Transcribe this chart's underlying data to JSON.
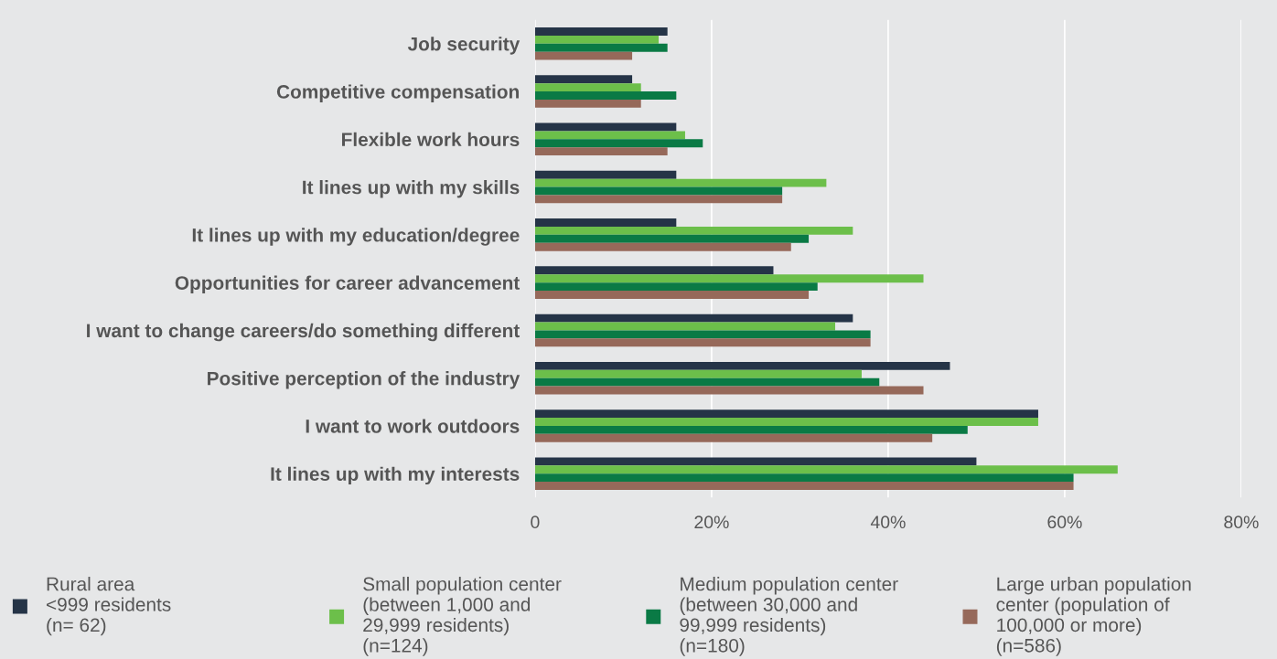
{
  "chart_data": {
    "type": "bar",
    "orientation": "horizontal",
    "categories": [
      "Job security",
      "Competitive compensation",
      "Flexible work hours",
      "It lines up with my skills",
      "It lines up with my education/degree",
      "Opportunities for career advancement",
      "I want to change careers/do something different",
      "Positive perception of the industry",
      "I want to work outdoors",
      "It lines up with my interests"
    ],
    "series": [
      {
        "name": "Rural area\n<999 residents\n(n= 62)",
        "color": "#253447",
        "values": [
          15,
          11,
          16,
          16,
          16,
          27,
          36,
          47,
          57,
          50
        ]
      },
      {
        "name": "Small population center\n(between 1,000 and\n29,999 residents)\n(n=124)",
        "color": "#6cbf4a",
        "values": [
          14,
          12,
          17,
          33,
          36,
          44,
          34,
          37,
          57,
          66
        ]
      },
      {
        "name": "Medium population center\n(between 30,000 and\n99,999 residents)\n(n=180)",
        "color": "#0a7a45",
        "values": [
          15,
          16,
          19,
          28,
          31,
          32,
          38,
          39,
          49,
          61
        ]
      },
      {
        "name": "Large urban population\ncenter (population of\n100,000 or more)\n(n=586)",
        "color": "#96695a",
        "values": [
          11,
          12,
          15,
          28,
          29,
          31,
          38,
          44,
          45,
          61
        ]
      }
    ],
    "xlim": [
      0,
      80
    ],
    "xticks": [
      {
        "value": 0,
        "label": "0"
      },
      {
        "value": 20,
        "label": "20%"
      },
      {
        "value": 40,
        "label": "40%"
      },
      {
        "value": 60,
        "label": "60%"
      },
      {
        "value": 80,
        "label": "80%"
      }
    ],
    "grid": "x",
    "legend": "bottom"
  }
}
